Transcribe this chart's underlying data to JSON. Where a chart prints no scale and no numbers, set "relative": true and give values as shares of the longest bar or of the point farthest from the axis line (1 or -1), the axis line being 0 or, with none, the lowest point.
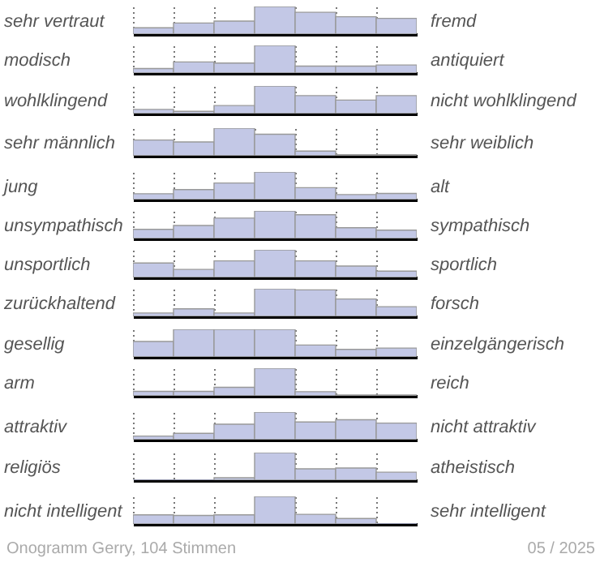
{
  "chart_data": [
    {
      "type": "bar",
      "relative": true,
      "ylabel": "sehr vertraut",
      "y2label": "fremd",
      "categories": [
        null,
        null,
        null,
        null,
        null,
        null,
        null
      ],
      "values": [
        0.23,
        0.4,
        0.47,
        1,
        0.79,
        0.63,
        0.57
      ],
      "color": "#c3c8e6",
      "grid": "x",
      "tick_labels": false
    },
    {
      "type": "bar",
      "relative": true,
      "ylabel": "modisch",
      "y2label": "antiquiert",
      "categories": [
        null,
        null,
        null,
        null,
        null,
        null,
        null
      ],
      "values": [
        0.16,
        0.4,
        0.36,
        1,
        0.25,
        0.25,
        0.29
      ],
      "color": "#c3c8e6",
      "grid": "x",
      "tick_labels": false
    },
    {
      "type": "bar",
      "relative": true,
      "ylabel": "wohlklingend",
      "y2label": "nicht wohlklingend",
      "categories": [
        null,
        null,
        null,
        null,
        null,
        null,
        null
      ],
      "values": [
        0.15,
        0.08,
        0.29,
        1,
        0.65,
        0.49,
        0.65
      ],
      "color": "#c3c8e6",
      "grid": "x",
      "tick_labels": false
    },
    {
      "type": "bar",
      "relative": true,
      "ylabel": "sehr männlich",
      "y2label": "sehr weiblich",
      "categories": [
        null,
        null,
        null,
        null,
        null,
        null,
        null
      ],
      "values": [
        0.57,
        0.5,
        1,
        0.78,
        0.17,
        0.04,
        0.04
      ],
      "color": "#c3c8e6",
      "grid": "x",
      "tick_labels": false
    },
    {
      "type": "bar",
      "relative": true,
      "ylabel": " jung",
      "y2label": "alt",
      "categories": [
        null,
        null,
        null,
        null,
        null,
        null,
        null
      ],
      "values": [
        0.21,
        0.36,
        0.6,
        1,
        0.43,
        0.18,
        0.22
      ],
      "color": "#c3c8e6",
      "grid": "x",
      "tick_labels": false
    },
    {
      "type": "bar",
      "relative": true,
      "ylabel": "unsympathisch",
      "y2label": "sympathisch",
      "categories": [
        null,
        null,
        null,
        null,
        null,
        null,
        null
      ],
      "values": [
        0.33,
        0.47,
        0.74,
        1,
        0.86,
        0.39,
        0.3
      ],
      "color": "#c3c8e6",
      "grid": "x",
      "tick_labels": false
    },
    {
      "type": "bar",
      "relative": true,
      "ylabel": "unsportlich",
      "y2label": "sportlich",
      "categories": [
        null,
        null,
        null,
        null,
        null,
        null,
        null
      ],
      "values": [
        0.52,
        0.29,
        0.6,
        1,
        0.6,
        0.41,
        0.23
      ],
      "color": "#c3c8e6",
      "grid": "x",
      "tick_labels": false
    },
    {
      "type": "bar",
      "relative": true,
      "ylabel": "zurückhaltend",
      "y2label": "forsch",
      "categories": [
        null,
        null,
        null,
        null,
        null,
        null,
        null
      ],
      "values": [
        0.12,
        0.27,
        0.12,
        1,
        0.96,
        0.63,
        0.35
      ],
      "color": "#c3c8e6",
      "grid": "x",
      "tick_labels": false
    },
    {
      "type": "bar",
      "relative": true,
      "ylabel": "gesellig",
      "y2label": "einzelgängerisch",
      "categories": [
        null,
        null,
        null,
        null,
        null,
        null,
        null
      ],
      "values": [
        0.56,
        1,
        1,
        1,
        0.43,
        0.27,
        0.32
      ],
      "color": "#c3c8e6",
      "grid": "x",
      "tick_labels": false
    },
    {
      "type": "bar",
      "relative": true,
      "ylabel": "arm",
      "y2label": "reich",
      "categories": [
        null,
        null,
        null,
        null,
        null,
        null,
        null
      ],
      "values": [
        0.16,
        0.16,
        0.31,
        1,
        0.15,
        0.03,
        0.03
      ],
      "color": "#c3c8e6",
      "grid": "x",
      "tick_labels": false
    },
    {
      "type": "bar",
      "relative": true,
      "ylabel": "attraktiv",
      "y2label": "nicht attraktiv",
      "categories": [
        null,
        null,
        null,
        null,
        null,
        null,
        null
      ],
      "values": [
        0.13,
        0.23,
        0.56,
        1,
        0.64,
        0.72,
        0.6
      ],
      "color": "#c3c8e6",
      "grid": "x",
      "tick_labels": false
    },
    {
      "type": "bar",
      "relative": true,
      "ylabel": "religiös",
      "y2label": "atheistisch",
      "categories": [
        null,
        null,
        null,
        null,
        null,
        null,
        null
      ],
      "values": [
        0,
        0,
        0.09,
        1,
        0.41,
        0.44,
        0.29
      ],
      "color": "#c3c8e6",
      "grid": "x",
      "tick_labels": false
    },
    {
      "type": "bar",
      "relative": true,
      "ylabel": "nicht intelligent",
      "y2label": "sehr intelligent",
      "categories": [
        null,
        null,
        null,
        null,
        null,
        null,
        null
      ],
      "values": [
        0.33,
        0.31,
        0.33,
        1,
        0.35,
        0.2,
        0
      ],
      "color": "#c3c8e6",
      "grid": "x",
      "tick_labels": false,
      "annotations": [
        "Onogramm Gerry, 104 Stimmen",
        "05 / 2025"
      ]
    }
  ]
}
